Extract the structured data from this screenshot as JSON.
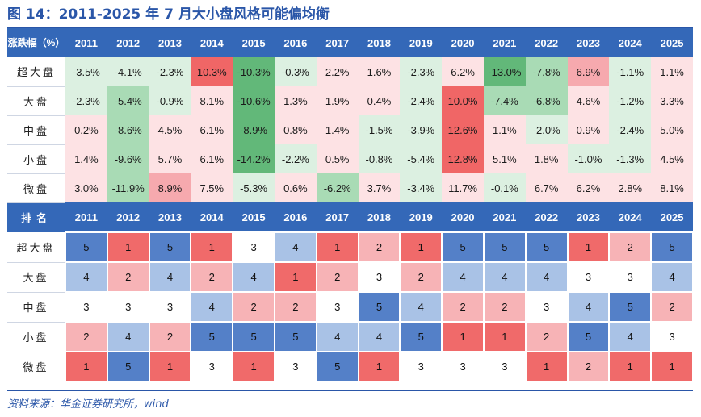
{
  "title": "图 14：2011-2025 年 7 月大小盘风格可能偏均衡",
  "source": "资料来源：华金证券研究所，wind",
  "colors": {
    "header_bg": "#3468b8",
    "red_strong": "#f06666",
    "red_mid": "#f6a9ae",
    "red_light": "#fde2e4",
    "green_strong": "#62b879",
    "green_mid": "#a9dbb5",
    "green_light": "#dcf0e1",
    "rank_1": "#f06a6a",
    "rank_2": "#f7b3b6",
    "rank_3": "#ffffff",
    "rank_4": "#a9c2e6",
    "rank_5": "#5480c8"
  },
  "years": [
    "2011",
    "2012",
    "2013",
    "2014",
    "2015",
    "2016",
    "2017",
    "2018",
    "2019",
    "2020",
    "2021",
    "2022",
    "2023",
    "2024",
    "2025"
  ],
  "pct_table": {
    "corner_label": "涨跌幅（%）",
    "rows": [
      {
        "label": "超大盘",
        "values": [
          "-3.5%",
          "-4.1%",
          "-2.3%",
          "10.3%",
          "-10.3%",
          "-0.3%",
          "2.2%",
          "1.6%",
          "-2.3%",
          "6.2%",
          "-13.0%",
          "-7.8%",
          "6.9%",
          "-1.1%",
          "1.1%"
        ]
      },
      {
        "label": "大盘",
        "values": [
          "-2.3%",
          "-5.4%",
          "-0.9%",
          "8.1%",
          "-10.6%",
          "1.3%",
          "1.9%",
          "0.4%",
          "-2.4%",
          "10.0%",
          "-7.4%",
          "-6.8%",
          "4.6%",
          "-1.2%",
          "3.3%"
        ]
      },
      {
        "label": "中盘",
        "values": [
          "0.2%",
          "-8.6%",
          "4.5%",
          "6.1%",
          "-8.9%",
          "0.8%",
          "1.4%",
          "-1.5%",
          "-3.9%",
          "12.6%",
          "1.1%",
          "-2.0%",
          "0.9%",
          "-2.4%",
          "5.0%"
        ]
      },
      {
        "label": "小盘",
        "values": [
          "1.4%",
          "-9.6%",
          "5.7%",
          "6.1%",
          "-14.2%",
          "-2.2%",
          "0.5%",
          "-0.8%",
          "-5.4%",
          "12.8%",
          "5.1%",
          "1.8%",
          "-1.0%",
          "-1.3%",
          "4.5%"
        ]
      },
      {
        "label": "微盘",
        "values": [
          "3.0%",
          "-11.9%",
          "8.9%",
          "7.5%",
          "-5.3%",
          "0.6%",
          "-6.2%",
          "3.7%",
          "-3.4%",
          "11.7%",
          "-0.1%",
          "6.7%",
          "6.2%",
          "2.8%",
          "8.1%"
        ]
      }
    ],
    "shades": [
      [
        "gl",
        "gl",
        "gl",
        "rs",
        "gs",
        "gl",
        "rl",
        "rl",
        "gl",
        "rl",
        "gs",
        "gm",
        "rm",
        "gl",
        "rl"
      ],
      [
        "gl",
        "gm",
        "gl",
        "rl",
        "gs",
        "rl",
        "rl",
        "rl",
        "gl",
        "rs",
        "gm",
        "gm",
        "rl",
        "gl",
        "rl"
      ],
      [
        "rl",
        "gm",
        "rl",
        "rl",
        "gs",
        "rl",
        "rl",
        "gl",
        "gl",
        "rs",
        "rl",
        "gl",
        "rl",
        "gl",
        "rl"
      ],
      [
        "rl",
        "gm",
        "rl",
        "rl",
        "gs",
        "gl",
        "rl",
        "gl",
        "gl",
        "rs",
        "rl",
        "rl",
        "gl",
        "gl",
        "rl"
      ],
      [
        "rl",
        "gm",
        "rm",
        "rl",
        "gl",
        "rl",
        "gm",
        "rl",
        "gl",
        "rl",
        "gl",
        "rl",
        "rl",
        "rl",
        "rl"
      ]
    ]
  },
  "rank_table": {
    "corner_label": "排名",
    "rows": [
      {
        "label": "超大盘",
        "values": [
          5,
          1,
          5,
          1,
          3,
          4,
          1,
          2,
          1,
          5,
          5,
          5,
          1,
          2,
          5
        ]
      },
      {
        "label": "大盘",
        "values": [
          4,
          2,
          4,
          2,
          4,
          1,
          2,
          3,
          2,
          4,
          4,
          4,
          3,
          3,
          4
        ]
      },
      {
        "label": "中盘",
        "values": [
          3,
          3,
          3,
          4,
          2,
          2,
          3,
          5,
          4,
          2,
          2,
          3,
          4,
          5,
          2
        ]
      },
      {
        "label": "小盘",
        "values": [
          2,
          4,
          2,
          5,
          5,
          5,
          4,
          4,
          5,
          1,
          1,
          2,
          5,
          4,
          3
        ]
      },
      {
        "label": "微盘",
        "values": [
          1,
          5,
          1,
          3,
          1,
          3,
          5,
          1,
          3,
          3,
          3,
          1,
          2,
          1,
          1
        ]
      }
    ]
  }
}
